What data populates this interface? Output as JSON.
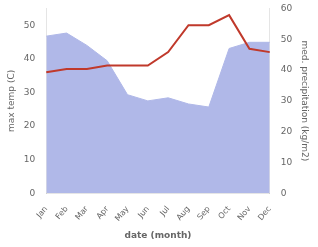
{
  "chart_data": {
    "type": "line",
    "categories": [
      "Jan",
      "Feb",
      "Mar",
      "Apr",
      "May",
      "Jun",
      "Jul",
      "Aug",
      "Sep",
      "Oct",
      "Nov",
      "Dec"
    ],
    "series": [
      {
        "type": "area",
        "axis": "y2",
        "color": "#b0b8e8",
        "values": [
          51,
          52,
          48,
          43,
          32,
          30,
          31,
          29,
          28,
          47,
          49,
          49
        ]
      },
      {
        "type": "line",
        "color": "#c0392b",
        "values": [
          36,
          37,
          37,
          38,
          38,
          38,
          42,
          50,
          50,
          53,
          43,
          42
        ]
      }
    ],
    "xlabel": "date (month)",
    "ylabel": "max temp (C)",
    "y2label": "med. precipitation (kg/m2)",
    "ylim": [
      0,
      55
    ],
    "yticks": [
      0,
      10,
      20,
      30,
      40,
      50
    ],
    "y2lim": [
      0,
      60
    ],
    "y2ticks": [
      0,
      10,
      20,
      30,
      40,
      50,
      60
    ],
    "grid": false
  }
}
